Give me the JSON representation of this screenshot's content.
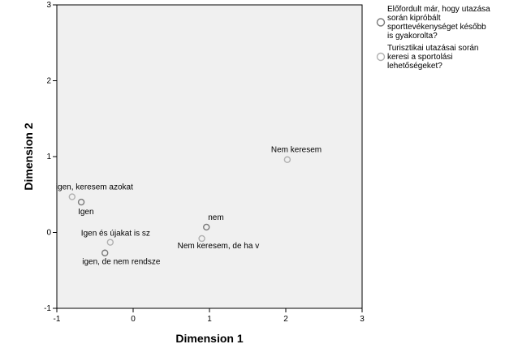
{
  "chart_data": {
    "type": "scatter",
    "xlabel": "Dimension 1",
    "ylabel": "Dimension 2",
    "xlim": [
      -1,
      3
    ],
    "ylim": [
      -1,
      3
    ],
    "xticks": [
      "-1",
      "0",
      "1",
      "2",
      "3"
    ],
    "yticks": [
      "-1",
      "0",
      "1",
      "2",
      "3"
    ],
    "grid": false,
    "legend_position": "right",
    "background": "#f0f0f0",
    "series": [
      {
        "name": "Előfordult már, hogy utazása során kipróbált sporttevékenységet később is gyakorolta?",
        "color": "#7a7a7a",
        "points": [
          {
            "label": "Igen",
            "x": -0.68,
            "y": 0.4
          },
          {
            "label": "nem",
            "x": 0.96,
            "y": 0.07
          },
          {
            "label": "igen, de nem rendsze",
            "x": -0.37,
            "y": -0.27
          }
        ]
      },
      {
        "name": "Turisztikai utazásai során keresi a sportolási lehetőségeket?",
        "color": "#b0b0b0",
        "points": [
          {
            "label": "Nem keresem",
            "x": 2.02,
            "y": 0.96
          },
          {
            "label": "igen, keresem azokat",
            "x": -0.8,
            "y": 0.47
          },
          {
            "label": "Igen és újakat is sz",
            "x": -0.3,
            "y": -0.13
          },
          {
            "label": "Nem keresem, de ha v",
            "x": 0.9,
            "y": -0.08
          }
        ]
      }
    ]
  }
}
